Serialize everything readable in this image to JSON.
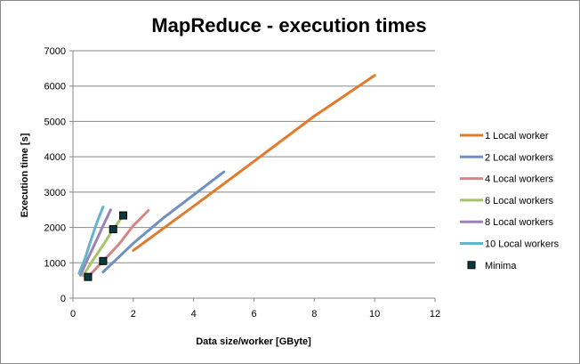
{
  "chart_data": {
    "type": "line",
    "title": "MapReduce - execution times",
    "xlabel": "Data size/worker [GByte]",
    "ylabel": "Execution time [s]",
    "xlim": [
      0,
      12
    ],
    "ylim": [
      0,
      7000
    ],
    "xticks": [
      "0",
      "2",
      "4",
      "6",
      "8",
      "10",
      "12"
    ],
    "yticks": [
      "0",
      "1000",
      "2000",
      "3000",
      "4000",
      "5000",
      "6000",
      "7000"
    ],
    "grid": "horizontal",
    "legend_position": "right",
    "series": [
      {
        "name": "1 Local worker",
        "color": "#E07B2C",
        "x": [
          2,
          4,
          6,
          8,
          10
        ],
        "y": [
          1350,
          2600,
          3870,
          5150,
          6300
        ]
      },
      {
        "name": "2 Local workers",
        "color": "#6E91C2",
        "x": [
          1,
          2,
          3,
          4,
          5
        ],
        "y": [
          740,
          1550,
          2270,
          2920,
          3570
        ]
      },
      {
        "name": "4 Local workers",
        "color": "#D48686",
        "x": [
          0.5,
          1,
          1.5,
          2,
          2.5
        ],
        "y": [
          600,
          1050,
          1500,
          2050,
          2480
        ]
      },
      {
        "name": "6 Local workers",
        "color": "#A7C46C",
        "x": [
          0.333,
          0.667,
          1,
          1.333,
          1.667
        ],
        "y": [
          630,
          1080,
          1500,
          1950,
          2340
        ]
      },
      {
        "name": "8 Local workers",
        "color": "#9A83B7",
        "x": [
          0.25,
          0.5,
          0.75,
          1,
          1.25
        ],
        "y": [
          650,
          1130,
          1580,
          2050,
          2500
        ]
      },
      {
        "name": "10 Local workers",
        "color": "#63B5CF",
        "x": [
          0.2,
          0.4,
          0.6,
          0.8,
          1.0
        ],
        "y": [
          700,
          1120,
          1650,
          2150,
          2580
        ]
      },
      {
        "name": "Minima",
        "type": "scatter",
        "color": "#0A3A40",
        "x": [
          0.5,
          1.0,
          1.333,
          1.667
        ],
        "y": [
          600,
          1050,
          1950,
          2340
        ]
      }
    ]
  }
}
